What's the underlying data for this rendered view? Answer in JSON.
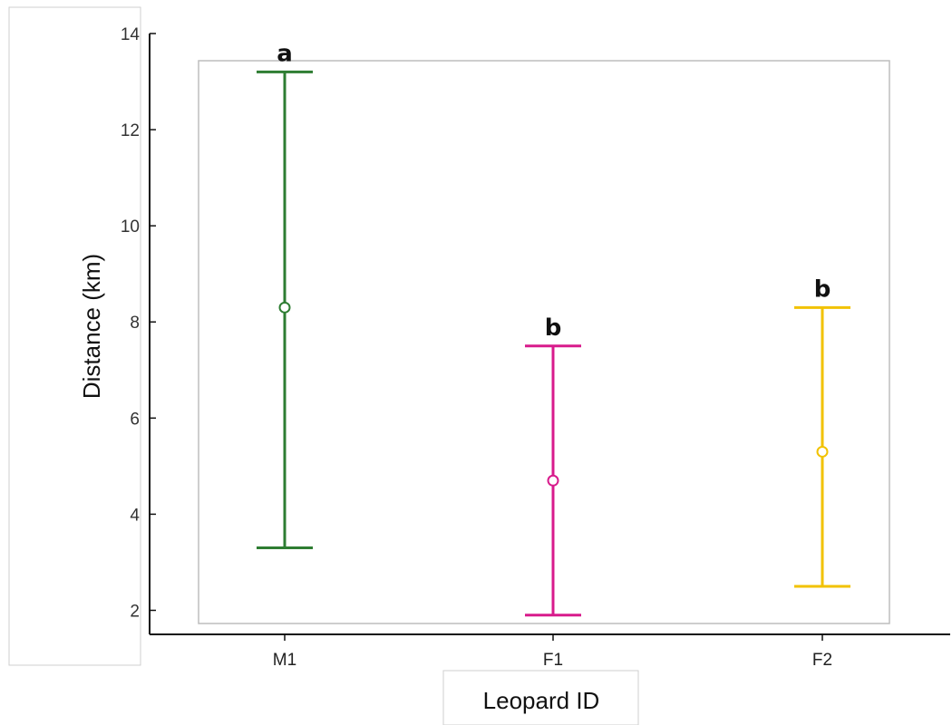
{
  "chart_data": {
    "type": "scatter",
    "title": "",
    "xlabel": "Leopard ID",
    "ylabel": "Distance (km)",
    "ylim": [
      1.5,
      14
    ],
    "yticks": [
      2,
      4,
      6,
      8,
      10,
      12,
      14
    ],
    "grid": false,
    "categories": [
      "M1",
      "F1",
      "F2"
    ],
    "points": [
      {
        "category": "M1",
        "mean": 8.3,
        "low": 3.3,
        "high": 13.2,
        "color": "#2e7d32",
        "letter": "a"
      },
      {
        "category": "F1",
        "mean": 4.7,
        "low": 1.9,
        "high": 7.5,
        "color": "#d81b8c",
        "letter": "b"
      },
      {
        "category": "F2",
        "mean": 5.3,
        "low": 2.5,
        "high": 8.3,
        "color": "#f2c200",
        "letter": "b"
      }
    ]
  }
}
